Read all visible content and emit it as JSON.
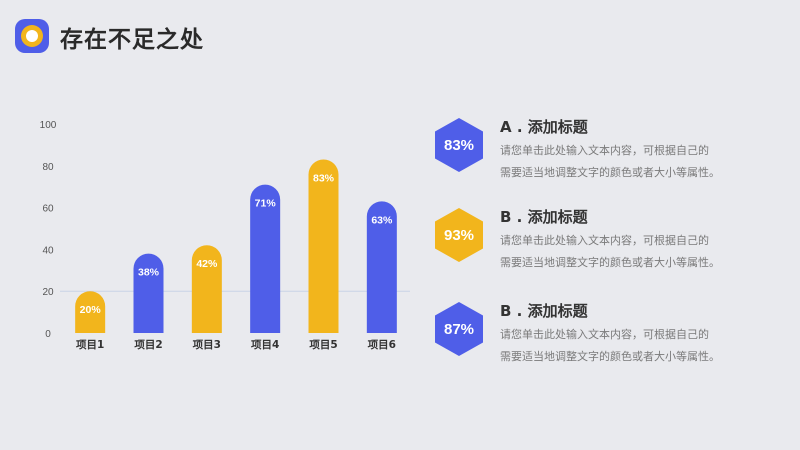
{
  "page": {
    "title": "存在不足之处"
  },
  "colors": {
    "blue": "#4f5ee8",
    "yellow": "#f2b51c",
    "background": "#e9eaee"
  },
  "chart_data": {
    "type": "bar",
    "categories": [
      "项目1",
      "项目2",
      "项目3",
      "项目4",
      "项目5",
      "项目6"
    ],
    "values": [
      20,
      38,
      42,
      71,
      83,
      63
    ],
    "value_labels": [
      "20%",
      "38%",
      "42%",
      "71%",
      "83%",
      "63%"
    ],
    "bar_colors": [
      "#f2b51c",
      "#4f5ee8",
      "#f2b51c",
      "#4f5ee8",
      "#f2b51c",
      "#4f5ee8"
    ],
    "ylim": [
      0,
      100
    ],
    "yticks": [
      0,
      20,
      40,
      60,
      80,
      100
    ],
    "title": "",
    "xlabel": "",
    "ylabel": "",
    "grid": false
  },
  "items": [
    {
      "percent": "83%",
      "title": "A . 添加标题",
      "line1": "请您单击此处输入文本内容，可根据自己的",
      "line2": "需要适当地调整文字的颜色或者大小等属性。",
      "color": "#4f5ee8"
    },
    {
      "percent": "93%",
      "title": "B . 添加标题",
      "line1": "请您单击此处输入文本内容，可根据自己的",
      "line2": "需要适当地调整文字的颜色或者大小等属性。",
      "color": "#f2b51c"
    },
    {
      "percent": "87%",
      "title": "B . 添加标题",
      "line1": "请您单击此处输入文本内容，可根据自己的",
      "line2": "需要适当地调整文字的颜色或者大小等属性。",
      "color": "#4f5ee8"
    }
  ]
}
